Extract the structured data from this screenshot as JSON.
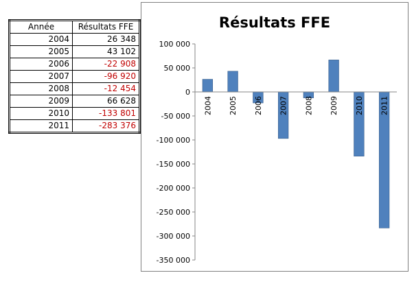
{
  "table": {
    "headers": [
      "Année",
      "Résultats FFE"
    ],
    "rows": [
      {
        "year": "2004",
        "value": "26 348"
      },
      {
        "year": "2005",
        "value": "43 102"
      },
      {
        "year": "2006",
        "value": "-22 908"
      },
      {
        "year": "2007",
        "value": "-96 920"
      },
      {
        "year": "2008",
        "value": "-12 454"
      },
      {
        "year": "2009",
        "value": "66 628"
      },
      {
        "year": "2010",
        "value": "-133 801"
      },
      {
        "year": "2011",
        "value": "-283 376"
      }
    ],
    "negative_color": "#c00000",
    "positive_color": "#000000"
  },
  "chart_data": {
    "type": "bar",
    "title": "Résultats FFE",
    "categories": [
      "2004",
      "2005",
      "2006",
      "2007",
      "2008",
      "2009",
      "2010",
      "2011"
    ],
    "values": [
      26348,
      43102,
      -22908,
      -96920,
      -12454,
      66628,
      -133801,
      -283376
    ],
    "ylim": [
      -350000,
      100000
    ],
    "ytick_values": [
      100000,
      50000,
      0,
      -50000,
      -100000,
      -150000,
      -200000,
      -250000,
      -300000,
      -350000
    ],
    "ytick_labels": [
      "100 000",
      "50 000",
      "0",
      "-50 000",
      "-100 000",
      "-150 000",
      "-200 000",
      "-250 000",
      "-300 000",
      "-350 000"
    ],
    "ytick_negative_color": "#c00000",
    "ytick_positive_color": "#000000",
    "bar_color": "#4f81bd",
    "bar_border": "#385d8a",
    "grid": false,
    "legend": "none"
  }
}
